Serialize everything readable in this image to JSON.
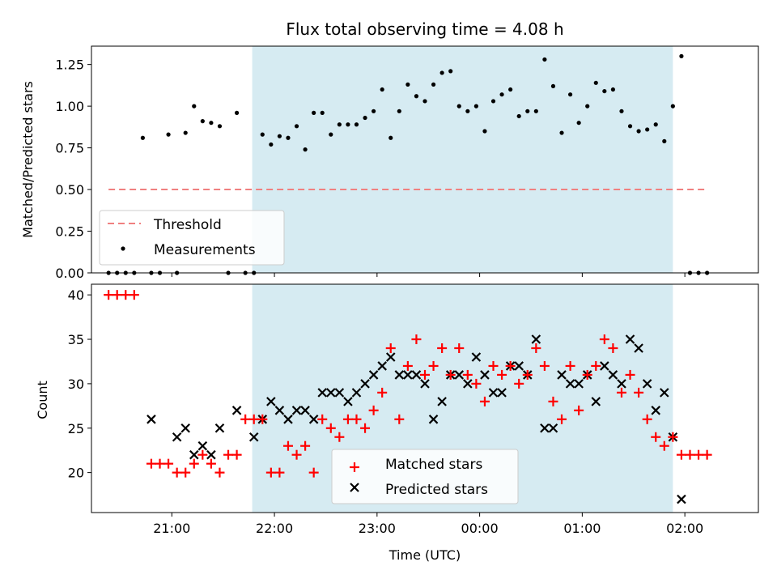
{
  "chart_data": [
    {
      "type": "scatter",
      "title": "Flux total observing time = 4.08 h",
      "ylabel": "Matched/Predicted stars",
      "xlabel": "",
      "ylim": [
        0,
        1.36
      ],
      "yticks": [
        "0.00",
        "0.25",
        "0.50",
        "0.75",
        "1.00",
        "1.25"
      ],
      "x_range": [
        "20:13",
        "02:43"
      ],
      "shaded_span": [
        "21:47",
        "01:53"
      ],
      "shaded_color": "#add8e6",
      "threshold": {
        "name": "Threshold",
        "value": 0.5,
        "x_start": "20:23",
        "x_end": "02:13",
        "color": "#f08080"
      },
      "legend": {
        "position": "lower-left",
        "entries": [
          "Threshold",
          "Measurements"
        ]
      },
      "series": [
        {
          "name": "Measurements",
          "color": "#000000",
          "marker": "dot",
          "x": [
            "20:23",
            "20:28",
            "20:33",
            "20:38",
            "20:43",
            "20:48",
            "20:53",
            "20:58",
            "21:03",
            "21:08",
            "21:13",
            "21:18",
            "21:23",
            "21:28",
            "21:33",
            "21:38",
            "21:43",
            "21:48",
            "21:53",
            "21:58",
            "22:03",
            "22:08",
            "22:13",
            "22:18",
            "22:23",
            "22:28",
            "22:33",
            "22:38",
            "22:43",
            "22:48",
            "22:53",
            "22:58",
            "23:03",
            "23:08",
            "23:13",
            "23:18",
            "23:23",
            "23:28",
            "23:33",
            "23:38",
            "23:43",
            "23:48",
            "23:53",
            "23:58",
            "00:03",
            "00:08",
            "00:13",
            "00:18",
            "00:23",
            "00:28",
            "00:33",
            "00:38",
            "00:43",
            "00:48",
            "00:53",
            "00:58",
            "01:03",
            "01:08",
            "01:13",
            "01:18",
            "01:23",
            "01:28",
            "01:33",
            "01:38",
            "01:43",
            "01:48",
            "01:53",
            "01:58",
            "02:03",
            "02:08",
            "02:13"
          ],
          "y": [
            0,
            0,
            0,
            0,
            0.81,
            0,
            0,
            0.83,
            0,
            0.84,
            1.0,
            0.91,
            0.9,
            0.88,
            0,
            0.96,
            0,
            0,
            0.83,
            0.77,
            0.82,
            0.81,
            0.88,
            0.74,
            0.96,
            0.96,
            0.83,
            0.89,
            0.89,
            0.89,
            0.93,
            0.97,
            1.1,
            0.81,
            0.97,
            1.13,
            1.06,
            1.03,
            1.13,
            1.2,
            1.21,
            1.0,
            0.97,
            1.0,
            0.85,
            1.03,
            1.07,
            1.1,
            0.94,
            0.97,
            0.97,
            1.28,
            1.12,
            0.84,
            1.07,
            0.9,
            1.0,
            1.14,
            1.09,
            1.1,
            0.97,
            0.88,
            0.85,
            0.86,
            0.89,
            0.79,
            1.0,
            1.3,
            0,
            0,
            0
          ]
        }
      ]
    },
    {
      "type": "scatter",
      "title": "",
      "ylabel": "Count",
      "xlabel": "Time (UTC)",
      "ylim": [
        15.5,
        41.2
      ],
      "yticks": [
        "20",
        "25",
        "30",
        "35",
        "40"
      ],
      "xticks": [
        "21:00",
        "22:00",
        "23:00",
        "00:00",
        "01:00",
        "02:00"
      ],
      "x_range": [
        "20:13",
        "02:43"
      ],
      "shaded_span": [
        "21:47",
        "01:53"
      ],
      "shaded_color": "#add8e6",
      "legend": {
        "position": "lower-center",
        "entries": [
          "Matched stars",
          "Predicted stars"
        ]
      },
      "x": [
        "20:23",
        "20:28",
        "20:33",
        "20:38",
        "20:48",
        "20:53",
        "20:58",
        "21:03",
        "21:08",
        "21:13",
        "21:18",
        "21:23",
        "21:28",
        "21:33",
        "21:38",
        "21:43",
        "21:48",
        "21:53",
        "21:58",
        "22:03",
        "22:08",
        "22:13",
        "22:18",
        "22:23",
        "22:28",
        "22:33",
        "22:38",
        "22:43",
        "22:48",
        "22:53",
        "22:58",
        "23:03",
        "23:08",
        "23:13",
        "23:18",
        "23:23",
        "23:28",
        "23:33",
        "23:38",
        "23:43",
        "23:48",
        "23:53",
        "23:58",
        "00:03",
        "00:08",
        "00:13",
        "00:18",
        "00:23",
        "00:28",
        "00:33",
        "00:38",
        "00:43",
        "00:48",
        "00:53",
        "00:58",
        "01:03",
        "01:08",
        "01:13",
        "01:18",
        "01:23",
        "01:28",
        "01:33",
        "01:38",
        "01:43",
        "01:48",
        "01:53",
        "01:58",
        "02:03",
        "02:08",
        "02:13"
      ],
      "series": [
        {
          "name": "Matched stars",
          "color": "#ff0000",
          "marker": "plus",
          "values": [
            40,
            40,
            40,
            40,
            21,
            21,
            21,
            20,
            20,
            21,
            22,
            21,
            20,
            22,
            22,
            26,
            26,
            26,
            20,
            20,
            23,
            22,
            23,
            20,
            26,
            25,
            24,
            26,
            26,
            25,
            27,
            29,
            34,
            26,
            32,
            35,
            31,
            32,
            34,
            31,
            34,
            31,
            30,
            28,
            32,
            31,
            32,
            30,
            31,
            34,
            32,
            28,
            26,
            32,
            27,
            31,
            32,
            35,
            34,
            29,
            31,
            29,
            26,
            24,
            23,
            24,
            22,
            22,
            22,
            22
          ]
        },
        {
          "name": "Predicted stars",
          "color": "#000000",
          "marker": "x",
          "values": [
            null,
            null,
            null,
            null,
            26,
            null,
            null,
            24,
            25,
            22,
            23,
            22,
            25,
            null,
            27,
            null,
            24,
            26,
            28,
            27,
            26,
            27,
            27,
            26,
            29,
            29,
            29,
            28,
            29,
            30,
            31,
            32,
            33,
            31,
            31,
            31,
            30,
            26,
            28,
            31,
            31,
            30,
            33,
            31,
            29,
            29,
            32,
            32,
            31,
            35,
            25,
            25,
            31,
            30,
            30,
            31,
            28,
            32,
            31,
            30,
            35,
            34,
            30,
            27,
            29,
            24,
            17,
            null,
            null,
            null
          ]
        }
      ]
    }
  ]
}
